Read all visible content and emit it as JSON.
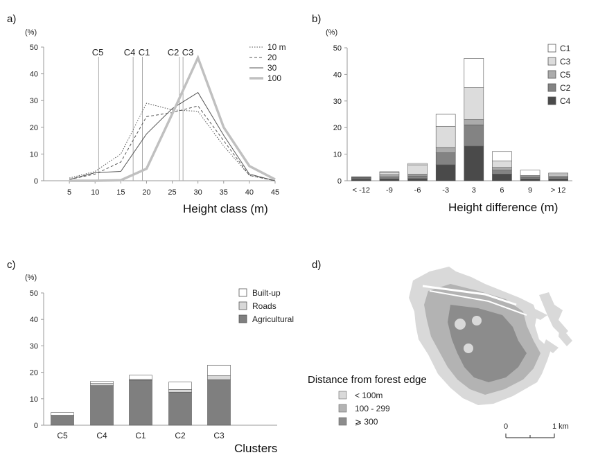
{
  "chart_data": [
    {
      "panel": "a)",
      "type": "line",
      "ylabel": "(%)",
      "xlabel": "Height class (m)",
      "x": [
        5,
        10,
        15,
        20,
        25,
        30,
        35,
        40,
        45
      ],
      "xlim": [
        0,
        45
      ],
      "ylim": [
        0,
        50
      ],
      "yticks": [
        0,
        10,
        20,
        30,
        40,
        50
      ],
      "series": [
        {
          "name": "10 m",
          "style": "dotted",
          "values": [
            1,
            3.5,
            10,
            29,
            26.5,
            26,
            13,
            2,
            0
          ]
        },
        {
          "name": "20",
          "style": "dashed",
          "values": [
            0.5,
            2.5,
            7,
            24,
            25.5,
            28,
            15,
            2,
            0
          ]
        },
        {
          "name": "30",
          "style": "solid",
          "values": [
            0.5,
            3,
            3.5,
            17.5,
            27,
            33,
            17,
            2.5,
            0
          ]
        },
        {
          "name": "100",
          "style": "thick",
          "values": [
            0,
            0,
            0.2,
            4.5,
            25,
            46,
            20,
            5.5,
            0.5
          ]
        }
      ],
      "annotations": [
        {
          "label": "C5",
          "x": 10.7
        },
        {
          "label": "C4",
          "x": 17.4
        },
        {
          "label": "C1",
          "x": 19.2
        },
        {
          "label": "C2",
          "x": 26.4
        },
        {
          "label": "C3",
          "x": 27.1
        }
      ],
      "legend_position": "top-right",
      "grid": false
    },
    {
      "panel": "b)",
      "type": "bar",
      "stacked": true,
      "ylabel": "(%)",
      "xlabel": "Height difference (m)",
      "categories": [
        "< -12",
        "-9",
        "-6",
        "-3",
        "3",
        "6",
        "9",
        "> 12"
      ],
      "ylim": [
        0,
        50
      ],
      "yticks": [
        0,
        10,
        20,
        30,
        40,
        50
      ],
      "series": [
        {
          "name": "C4",
          "color": "#4a4a4a",
          "values": [
            0.6,
            0.7,
            0.8,
            6,
            13,
            2.5,
            0.7,
            0.7
          ]
        },
        {
          "name": "C2",
          "color": "#838383",
          "values": [
            0.4,
            0.8,
            1,
            4.5,
            8,
            1.5,
            0.6,
            0.6
          ]
        },
        {
          "name": "C5",
          "color": "#ababab",
          "values": [
            0.2,
            0.8,
            0.7,
            2,
            2,
            1,
            0.3,
            0.5
          ]
        },
        {
          "name": "C3",
          "color": "#dcdcdc",
          "values": [
            0.2,
            0.8,
            3.5,
            8,
            12,
            2.5,
            0.4,
            0.8
          ]
        },
        {
          "name": "C1",
          "color": "#ffffff",
          "values": [
            0.1,
            0.3,
            0.5,
            4.5,
            11,
            3.5,
            2,
            0.3
          ]
        }
      ],
      "legend_order": [
        "C1",
        "C3",
        "C5",
        "C2",
        "C4"
      ],
      "legend_position": "top-right",
      "grid": false
    },
    {
      "panel": "c)",
      "type": "bar",
      "stacked": true,
      "ylabel": "(%)",
      "xlabel": "Clusters",
      "categories": [
        "C5",
        "C4",
        "C1",
        "C2",
        "C3"
      ],
      "ylim": [
        0,
        50
      ],
      "yticks": [
        0,
        10,
        20,
        30,
        40,
        50
      ],
      "series": [
        {
          "name": "Agricultural",
          "color": "#7f7f7f",
          "values": [
            3.5,
            15,
            17,
            12.5,
            17.2
          ]
        },
        {
          "name": "Roads",
          "color": "#d8d8d8",
          "values": [
            0.3,
            0.8,
            0.4,
            1,
            1.5
          ]
        },
        {
          "name": "Built-up",
          "color": "#ffffff",
          "values": [
            1,
            0.8,
            1.5,
            2.8,
            4
          ]
        }
      ],
      "legend_order": [
        "Built-up",
        "Roads",
        "Agricultural"
      ],
      "legend_position": "top-right",
      "grid": false
    }
  ],
  "map": {
    "panel": "d)",
    "legend_title": "Distance from forest edge",
    "legend": [
      {
        "label": "< 100m",
        "color": "#d9d9d9"
      },
      {
        "label": "100 - 299",
        "color": "#b3b3b3"
      },
      {
        "label": "⩾ 300",
        "color": "#8c8c8c"
      }
    ],
    "scale": {
      "start": "0",
      "end": "1 km"
    }
  }
}
